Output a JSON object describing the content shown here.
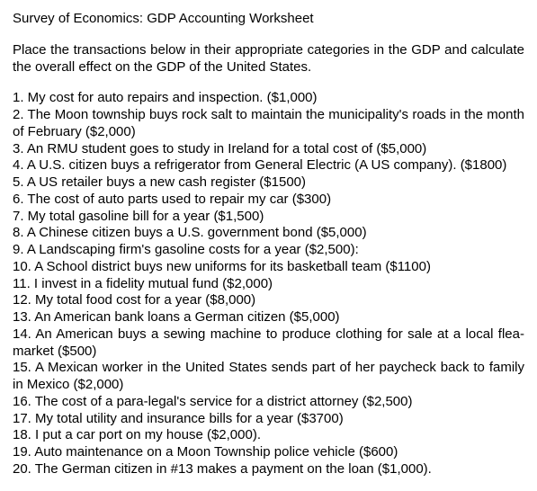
{
  "title": "Survey of Economics: GDP Accounting Worksheet",
  "instructions": "Place the transactions below in their appropriate categories in the GDP and calculate the overall effect on the GDP of the United States.",
  "items": [
    "1. My cost for auto repairs and inspection. ($1,000)",
    "2. The Moon township buys rock salt to maintain the municipality's roads in the month of February ($2,000)",
    "3. An RMU student goes to study in Ireland for a total cost of ($5,000)",
    "4. A U.S. citizen buys a refrigerator from General Electric (A US company). ($1800)",
    "5. A US retailer buys a new cash register ($1500)",
    "6. The cost of auto parts used to repair my car ($300)",
    "7. My total gasoline bill for a year ($1,500)",
    "8. A Chinese citizen buys a U.S. government bond ($5,000)",
    "9. A Landscaping firm's gasoline costs for a year ($2,500):",
    "10. A School district buys new uniforms for its basketball team ($1100)",
    "11. I invest in a fidelity mutual fund ($2,000)",
    "12. My total food cost for a year ($8,000)",
    "13. An American bank loans a German citizen ($5,000)",
    "14. An American buys a sewing machine to produce clothing for sale at a local flea-market ($500)",
    "15. A Mexican worker in the United States sends part of her paycheck back to family in Mexico ($2,000)",
    "16. The cost of a para-legal's service for a district attorney ($2,500)",
    "17. My total utility and insurance bills for a year ($3700)",
    "18. I put a car port on my house ($2,000).",
    "19. Auto maintenance on a Moon Township police vehicle ($600)",
    "20. The German citizen in #13 makes a payment on the loan ($1,000)."
  ]
}
